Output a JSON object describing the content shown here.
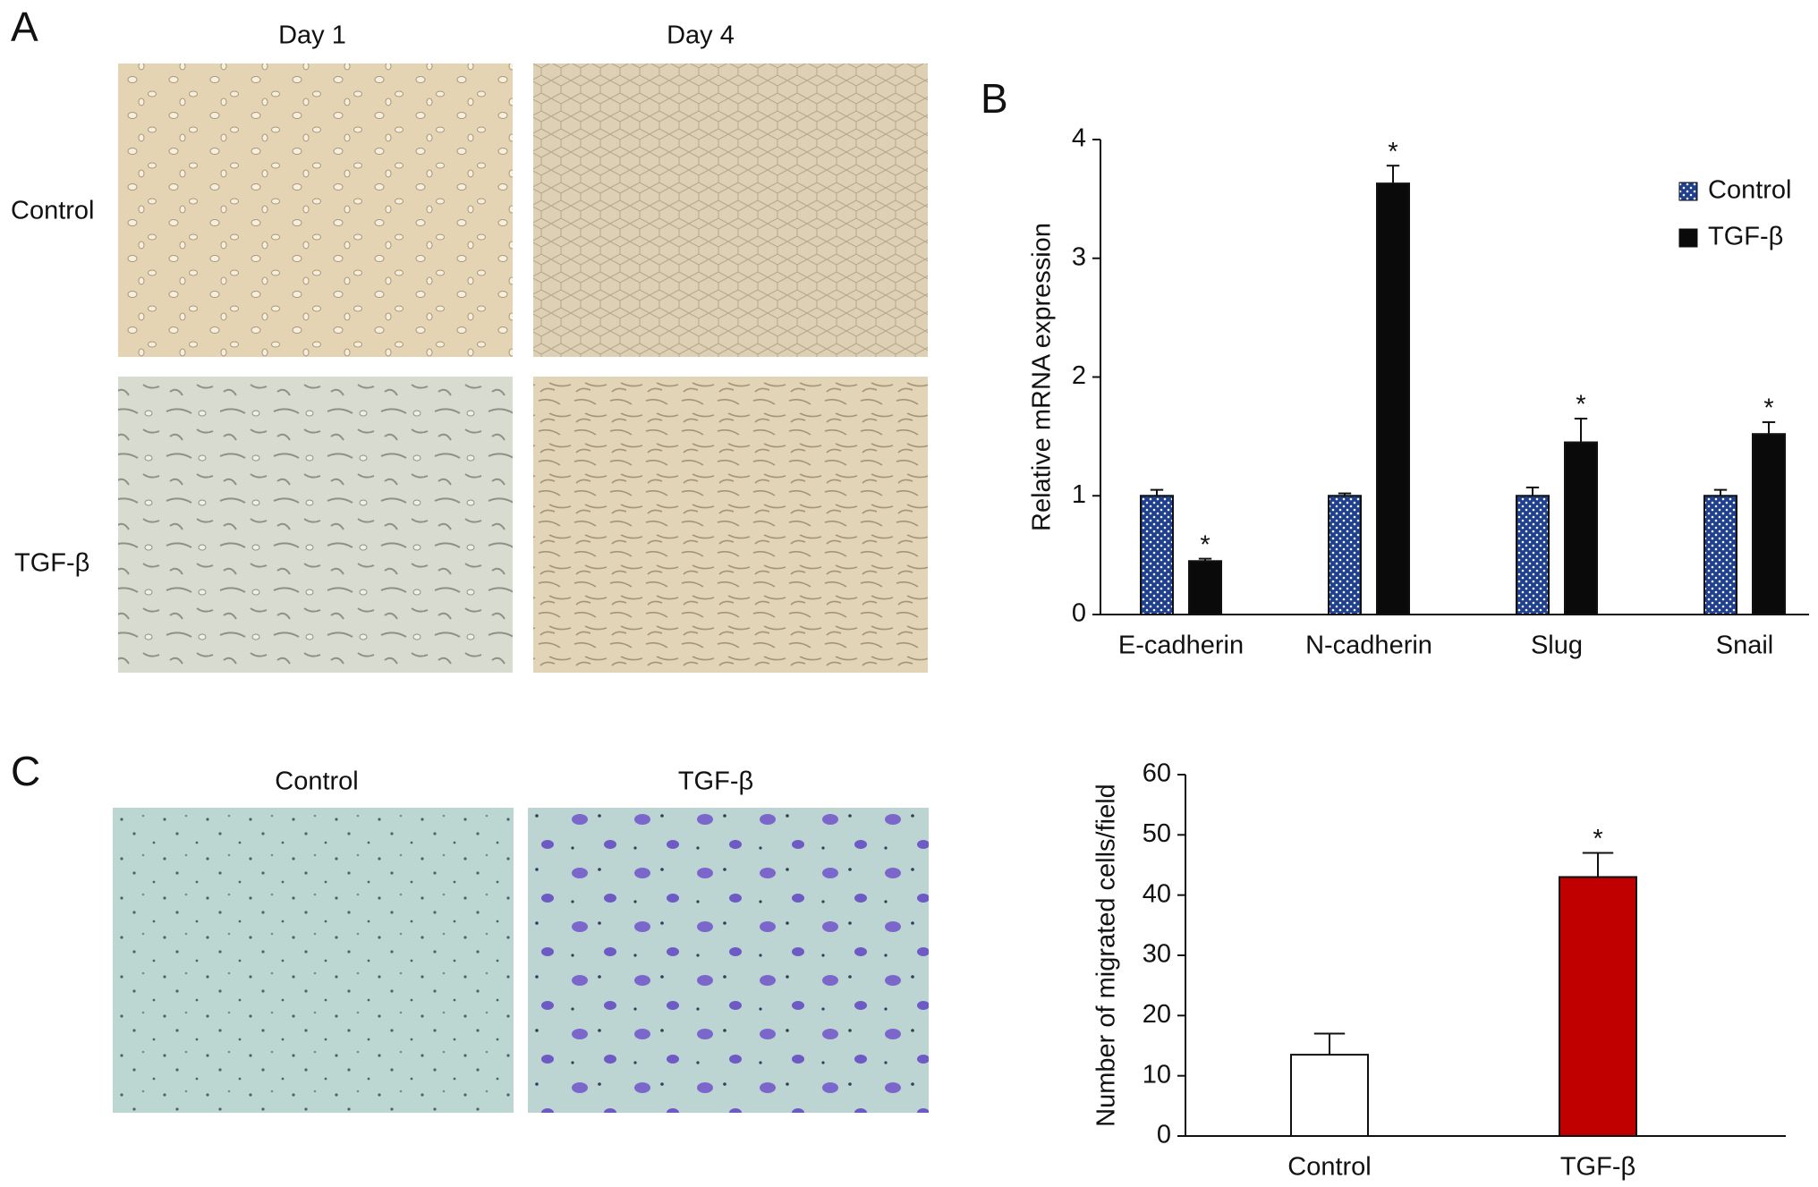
{
  "panels": {
    "a": {
      "label": "A",
      "columns": [
        "Day 1",
        "Day 4"
      ],
      "rows": [
        "Control",
        "TGF-β"
      ]
    },
    "b": {
      "label": "B"
    },
    "c": {
      "label": "C",
      "columns": [
        "Control",
        "TGF-β"
      ]
    }
  },
  "chart_data": [
    {
      "type": "bar",
      "ylabel": "Relative mRNA expression",
      "categories": [
        "E-cadherin",
        "N-cadherin",
        "Slug",
        "Snail"
      ],
      "series": [
        {
          "name": "Control",
          "color": "#1f3f8f",
          "pattern": "dots",
          "values": [
            1,
            1,
            1,
            1
          ],
          "errors": [
            0.05,
            0.02,
            0.07,
            0.05
          ]
        },
        {
          "name": "TGF-β",
          "color": "#0a0a0a",
          "values": [
            0.45,
            3.63,
            1.45,
            1.52
          ],
          "errors": [
            0.02,
            0.15,
            0.2,
            0.1
          ],
          "annotations": [
            "*",
            "*",
            "*",
            "*"
          ]
        }
      ],
      "ylim": [
        0,
        4
      ],
      "yticks": [
        0,
        1,
        2,
        3,
        4
      ],
      "legend": "top-right"
    },
    {
      "type": "bar",
      "ylabel": "Number of migrated cells/field",
      "categories": [
        "Control",
        "TGF-β"
      ],
      "values": [
        13.5,
        43
      ],
      "errors": [
        3.5,
        4
      ],
      "colors": [
        "#ffffff",
        "#c00000"
      ],
      "annotations": [
        null,
        "*"
      ],
      "ylim": [
        0,
        60
      ],
      "yticks": [
        0,
        10,
        20,
        30,
        40,
        50,
        60
      ]
    }
  ]
}
